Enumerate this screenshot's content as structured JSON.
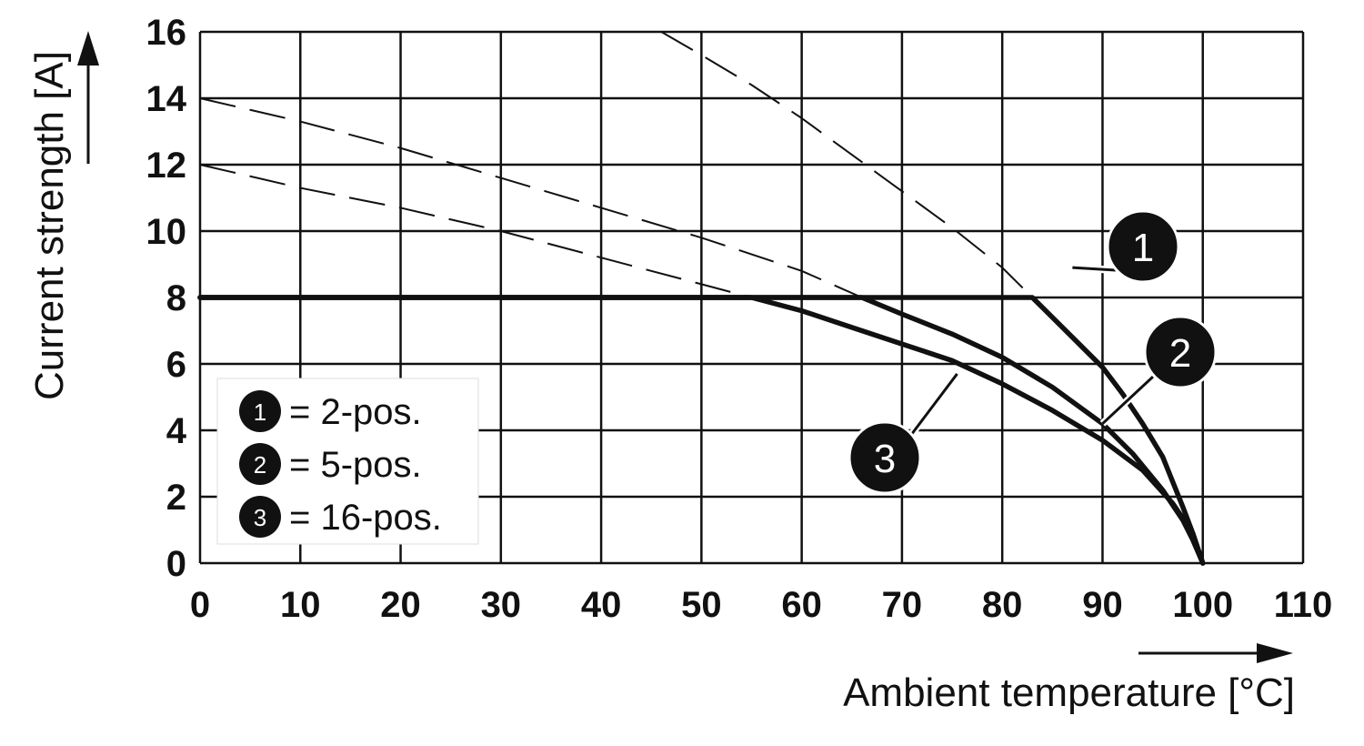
{
  "chart_data": {
    "type": "line",
    "xlabel": "Ambient temperature [°C]",
    "ylabel": "Current strength [A]",
    "xlim": [
      0,
      110
    ],
    "ylim": [
      0,
      16
    ],
    "x_ticks": [
      "0",
      "10",
      "20",
      "30",
      "40",
      "50",
      "60",
      "70",
      "80",
      "90",
      "100",
      "110"
    ],
    "y_ticks": [
      "0",
      "2",
      "4",
      "6",
      "8",
      "10",
      "12",
      "14",
      "16"
    ],
    "grid": true,
    "legend_position": "bottom-left",
    "legend": [
      {
        "marker": "1",
        "label": "= 2-pos."
      },
      {
        "marker": "2",
        "label": "= 5-pos."
      },
      {
        "marker": "3",
        "label": "= 16-pos."
      }
    ],
    "series": [
      {
        "marker": "1",
        "x": [
          0,
          83,
          86,
          88,
          90,
          92,
          94,
          96,
          98,
          99,
          100
        ],
        "y": [
          8,
          8,
          7.1,
          6.5,
          5.9,
          5.1,
          4.2,
          3.2,
          1.7,
          0.9,
          0
        ],
        "extrapolated": {
          "x": [
            46,
            50,
            55,
            60,
            65,
            70,
            75,
            80,
            83
          ],
          "y": [
            16,
            15.3,
            14.4,
            13.4,
            12.3,
            11.2,
            10.1,
            8.9,
            8
          ]
        }
      },
      {
        "marker": "2",
        "x": [
          0,
          66,
          70,
          75,
          80,
          85,
          90,
          93,
          96,
          98,
          99,
          100
        ],
        "y": [
          8,
          8,
          7.5,
          6.9,
          6.2,
          5.3,
          4.2,
          3.3,
          2.2,
          1.3,
          0.7,
          0
        ],
        "extrapolated": {
          "x": [
            0,
            10,
            20,
            30,
            40,
            50,
            60,
            66
          ],
          "y": [
            14,
            13.3,
            12.5,
            11.6,
            10.7,
            9.8,
            8.8,
            8
          ]
        }
      },
      {
        "marker": "3",
        "x": [
          0,
          55,
          60,
          65,
          70,
          75,
          80,
          85,
          90,
          94,
          97,
          99,
          100
        ],
        "y": [
          8,
          8,
          7.6,
          7.1,
          6.6,
          6.1,
          5.4,
          4.6,
          3.7,
          2.8,
          1.8,
          0.9,
          0
        ],
        "extrapolated": {
          "x": [
            0,
            10,
            20,
            30,
            40,
            50,
            55
          ],
          "y": [
            12,
            11.3,
            10.7,
            10.0,
            9.2,
            8.4,
            8
          ]
        }
      }
    ]
  }
}
